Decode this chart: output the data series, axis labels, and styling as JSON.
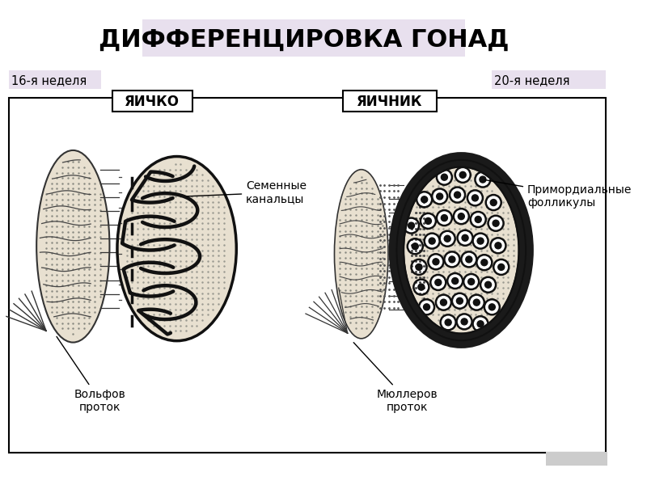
{
  "title": "ДИФФЕРЕНЦИРОВКА ГОНАД",
  "title_fontsize": 22,
  "title_bg_color": "#e8e0ee",
  "bg_color": "#ffffff",
  "diagram_bg": "#ffffff",
  "left_label": "16-я неделя",
  "right_label": "20-я неделя",
  "label_bg": "#e8e0ee",
  "box_label_left": "ЯИЧКО",
  "box_label_right": "ЯИЧНИК",
  "annotation_left_1": "Семенные\nканальцы",
  "annotation_left_2": "Вольфов\nпроток",
  "annotation_right_1": "Примордиальные\nфолликулы",
  "annotation_right_2": "Мюллеров\nпроток",
  "outline_color": "#1a1a1a",
  "dot_color": "#aaaaaa",
  "box_border": "#000000",
  "tubule_color": "#111111",
  "fill_light": "#f5f5f5",
  "fill_dotted": "#e8e4d8"
}
